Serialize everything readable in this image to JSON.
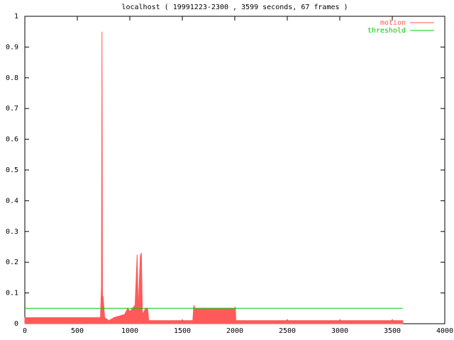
{
  "chart_data": {
    "type": "area",
    "title": "localhost ( 19991223-2300 , 3599 seconds, 67 frames )",
    "xlim": [
      0,
      4000
    ],
    "ylim": [
      0,
      1
    ],
    "xticks": [
      0,
      500,
      1000,
      1500,
      2000,
      2500,
      3000,
      3500,
      4000
    ],
    "yticks": [
      0,
      0.1,
      0.2,
      0.3,
      0.4,
      0.5,
      0.6,
      0.7,
      0.8,
      0.9,
      1
    ],
    "legend": "top-right",
    "series": [
      {
        "name": "motion",
        "color": "#ff5a5a",
        "fill": true,
        "x": [
          0,
          720,
          730,
          735,
          740,
          745,
          760,
          800,
          850,
          950,
          980,
          1000,
          1050,
          1070,
          1080,
          1100,
          1110,
          1120,
          1150,
          1170,
          1180,
          1600,
          1610,
          1620,
          2000,
          2005,
          2010,
          3599
        ],
        "values": [
          0.02,
          0.02,
          0.12,
          0.95,
          0.02,
          0.09,
          0.02,
          0.01,
          0.02,
          0.03,
          0.05,
          0.04,
          0.06,
          0.225,
          0.04,
          0.22,
          0.23,
          0.03,
          0.05,
          0.05,
          0.01,
          0.01,
          0.06,
          0.05,
          0.05,
          0.055,
          0.01,
          0.01
        ]
      },
      {
        "name": "threshold",
        "color": "#00cc00",
        "fill": false,
        "x": [
          0,
          3599
        ],
        "values": [
          0.05,
          0.05
        ]
      }
    ]
  }
}
